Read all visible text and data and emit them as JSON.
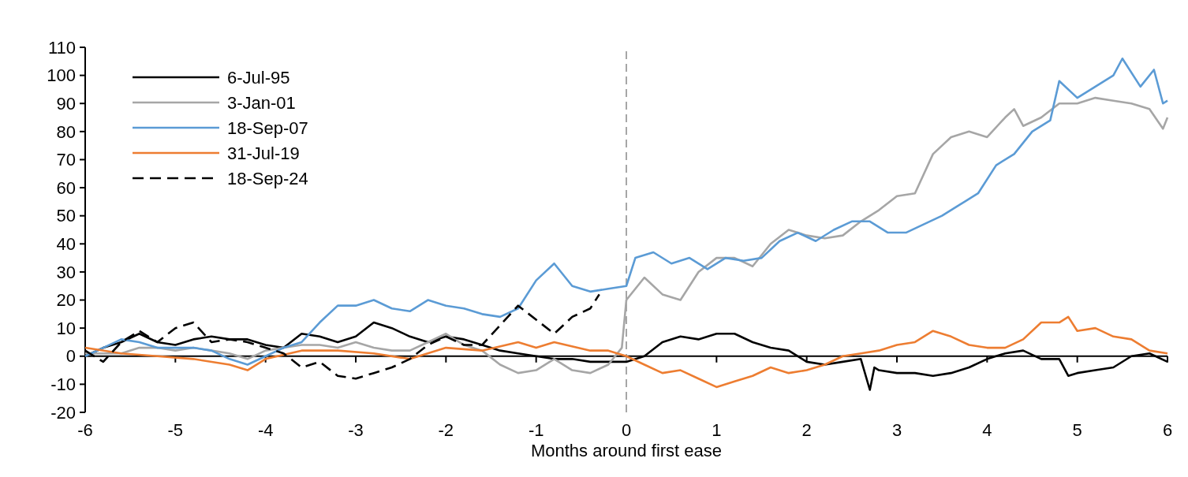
{
  "chart_data": {
    "type": "line",
    "xlabel": "Months around first ease",
    "xlim": [
      -6,
      6
    ],
    "xticks": [
      -6,
      -5,
      -4,
      -3,
      -2,
      -1,
      0,
      1,
      2,
      3,
      4,
      5,
      6
    ],
    "ylim": [
      -20,
      110
    ],
    "yticks": [
      -20,
      -10,
      0,
      10,
      20,
      30,
      40,
      50,
      60,
      70,
      80,
      90,
      100,
      110
    ],
    "grid": false,
    "legend": "top left",
    "ref_lines": [
      {
        "axis": "x",
        "value": 0,
        "color": "#a6a6a6",
        "line_style": "dashed"
      }
    ],
    "series": [
      {
        "name": "6-Jul-95",
        "color": "#000000",
        "line_style": "solid",
        "x": [
          -6,
          -5.8,
          -5.6,
          -5.4,
          -5.2,
          -5,
          -4.8,
          -4.6,
          -4.4,
          -4.2,
          -4,
          -3.8,
          -3.6,
          -3.4,
          -3.2,
          -3,
          -2.8,
          -2.6,
          -2.4,
          -2.2,
          -2,
          -1.8,
          -1.6,
          -1.4,
          -1.2,
          -1,
          -0.8,
          -0.6,
          -0.4,
          -0.2,
          0,
          0.2,
          0.4,
          0.6,
          0.8,
          1,
          1.2,
          1.4,
          1.6,
          1.8,
          2,
          2.2,
          2.4,
          2.6,
          2.7,
          2.75,
          2.8,
          3,
          3.2,
          3.4,
          3.6,
          3.8,
          4,
          4.2,
          4.4,
          4.6,
          4.8,
          4.9,
          5,
          5.2,
          5.4,
          5.6,
          5.8,
          6
        ],
        "values": [
          0,
          3,
          5,
          8,
          5,
          4,
          6,
          7,
          6,
          6,
          4,
          3,
          8,
          7,
          5,
          7,
          12,
          10,
          7,
          5,
          7,
          6,
          4,
          2,
          1,
          0,
          -1,
          -1,
          -2,
          -2,
          -2,
          0,
          5,
          7,
          6,
          8,
          8,
          5,
          3,
          2,
          -2,
          -3,
          -2,
          -1,
          -12,
          -4,
          -5,
          -6,
          -6,
          -7,
          -6,
          -4,
          -1,
          1,
          2,
          -1,
          -1,
          -7,
          -6,
          -5,
          -4,
          0,
          1,
          -2
        ]
      },
      {
        "name": "3-Jan-01",
        "color": "#a6a6a6",
        "line_style": "solid",
        "x": [
          -6,
          -5.6,
          -5.4,
          -5.2,
          -5,
          -4.8,
          -4.6,
          -4.4,
          -4.2,
          -4,
          -3.8,
          -3.6,
          -3.4,
          -3.2,
          -3,
          -2.8,
          -2.6,
          -2.4,
          -2.2,
          -2,
          -1.8,
          -1.6,
          -1.4,
          -1.2,
          -1,
          -0.8,
          -0.6,
          -0.4,
          -0.2,
          -0.05,
          0,
          0.2,
          0.4,
          0.6,
          0.8,
          1,
          1.2,
          1.4,
          1.6,
          1.8,
          2,
          2.2,
          2.4,
          2.6,
          2.8,
          3,
          3.2,
          3.4,
          3.6,
          3.8,
          4,
          4.2,
          4.3,
          4.4,
          4.6,
          4.8,
          5,
          5.2,
          5.4,
          5.6,
          5.8,
          5.95,
          6
        ],
        "values": [
          1,
          1,
          3,
          3,
          2,
          3,
          2,
          1,
          -1,
          2,
          3,
          4,
          4,
          3,
          5,
          3,
          2,
          2,
          5,
          8,
          4,
          2,
          -3,
          -6,
          -5,
          -1,
          -5,
          -6,
          -3,
          3,
          20,
          28,
          22,
          20,
          30,
          35,
          35,
          32,
          40,
          45,
          43,
          42,
          43,
          48,
          52,
          57,
          58,
          72,
          78,
          80,
          78,
          85,
          88,
          82,
          85,
          90,
          90,
          92,
          91,
          90,
          88,
          81,
          85
        ]
      },
      {
        "name": "18-Sep-07",
        "color": "#5b9bd5",
        "line_style": "solid",
        "x": [
          -6,
          -5.8,
          -5.6,
          -5.4,
          -5.2,
          -5,
          -4.8,
          -4.6,
          -4.4,
          -4.2,
          -4,
          -3.8,
          -3.6,
          -3.4,
          -3.2,
          -3,
          -2.8,
          -2.6,
          -2.4,
          -2.2,
          -2,
          -1.8,
          -1.6,
          -1.4,
          -1.2,
          -1,
          -0.8,
          -0.6,
          -0.4,
          -0.2,
          0,
          0.1,
          0.3,
          0.5,
          0.7,
          0.9,
          1.1,
          1.3,
          1.5,
          1.7,
          1.9,
          2.1,
          2.3,
          2.5,
          2.7,
          2.9,
          3.1,
          3.3,
          3.5,
          3.7,
          3.9,
          4.1,
          4.3,
          4.5,
          4.7,
          4.8,
          5,
          5.2,
          5.4,
          5.5,
          5.7,
          5.85,
          5.95,
          6
        ],
        "values": [
          0,
          3,
          6,
          5,
          3,
          3,
          3,
          2,
          -1,
          -3,
          0,
          3,
          5,
          12,
          18,
          18,
          20,
          17,
          16,
          20,
          18,
          17,
          15,
          14,
          17,
          27,
          33,
          25,
          23,
          24,
          25,
          35,
          37,
          33,
          35,
          31,
          35,
          34,
          35,
          41,
          44,
          41,
          45,
          48,
          48,
          44,
          44,
          47,
          50,
          54,
          58,
          68,
          72,
          80,
          84,
          98,
          92,
          96,
          100,
          106,
          96,
          102,
          90,
          91
        ]
      },
      {
        "name": "31-Jul-19",
        "color": "#ed7d31",
        "line_style": "solid",
        "x": [
          -6,
          -5.6,
          -5.2,
          -4.8,
          -4.4,
          -4.2,
          -4,
          -3.6,
          -3.2,
          -2.8,
          -2.4,
          -2,
          -1.6,
          -1.2,
          -1,
          -0.8,
          -0.4,
          -0.2,
          0,
          0.2,
          0.4,
          0.6,
          0.8,
          1,
          1.2,
          1.4,
          1.6,
          1.8,
          2,
          2.2,
          2.4,
          2.6,
          2.8,
          3,
          3.2,
          3.4,
          3.6,
          3.8,
          4,
          4.2,
          4.4,
          4.6,
          4.8,
          4.9,
          5,
          5.2,
          5.4,
          5.6,
          5.8,
          6
        ],
        "values": [
          3,
          1,
          0,
          -1,
          -3,
          -5,
          -1,
          2,
          2,
          1,
          -1,
          3,
          2,
          5,
          3,
          5,
          2,
          2,
          0,
          -3,
          -6,
          -5,
          -8,
          -11,
          -9,
          -7,
          -4,
          -6,
          -5,
          -3,
          0,
          1,
          2,
          4,
          5,
          9,
          7,
          4,
          3,
          3,
          6,
          12,
          12,
          14,
          9,
          10,
          7,
          6,
          2,
          1
        ]
      },
      {
        "name": "18-Sep-24",
        "color": "#000000",
        "line_style": "dashed",
        "x": [
          -6,
          -5.8,
          -5.6,
          -5.4,
          -5.2,
          -5,
          -4.8,
          -4.6,
          -4.4,
          -4.2,
          -4,
          -3.8,
          -3.6,
          -3.4,
          -3.2,
          -3,
          -2.8,
          -2.6,
          -2.4,
          -2.2,
          -2,
          -1.8,
          -1.6,
          -1.4,
          -1.2,
          -1,
          -0.8,
          -0.6,
          -0.4,
          -0.3
        ],
        "values": [
          2,
          -2,
          5,
          9,
          5,
          10,
          12,
          5,
          6,
          5,
          3,
          1,
          -4,
          -2,
          -7,
          -8,
          -6,
          -4,
          -1,
          4,
          7,
          4,
          4,
          11,
          18,
          13,
          8,
          14,
          17,
          22
        ]
      }
    ]
  }
}
